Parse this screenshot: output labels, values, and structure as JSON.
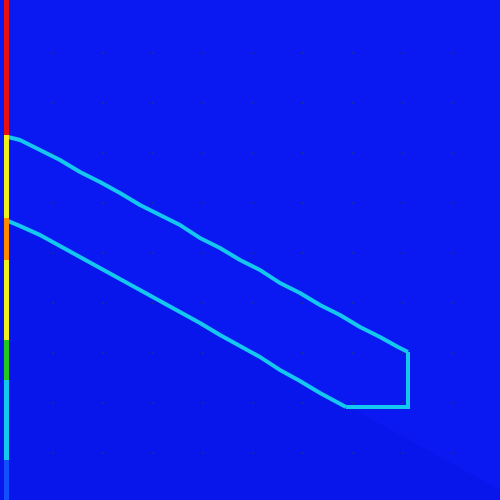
{
  "colors": {
    "background": "#0a18f2",
    "background_shade": "#0814e6",
    "shape_outline": "#14c8f0",
    "grid_dot": "#1a2a9a",
    "left_bar_segments": [
      {
        "color": "#e81010"
      },
      {
        "color": "#f0f020"
      },
      {
        "color": "#ff8a00"
      },
      {
        "color": "#f0f020"
      },
      {
        "color": "#20c820"
      },
      {
        "color": "#14c8f0"
      },
      {
        "color": "#1050ff"
      }
    ]
  },
  "icons": {
    "grid": "dot-grid",
    "shape": "tilted-slab-outline"
  }
}
